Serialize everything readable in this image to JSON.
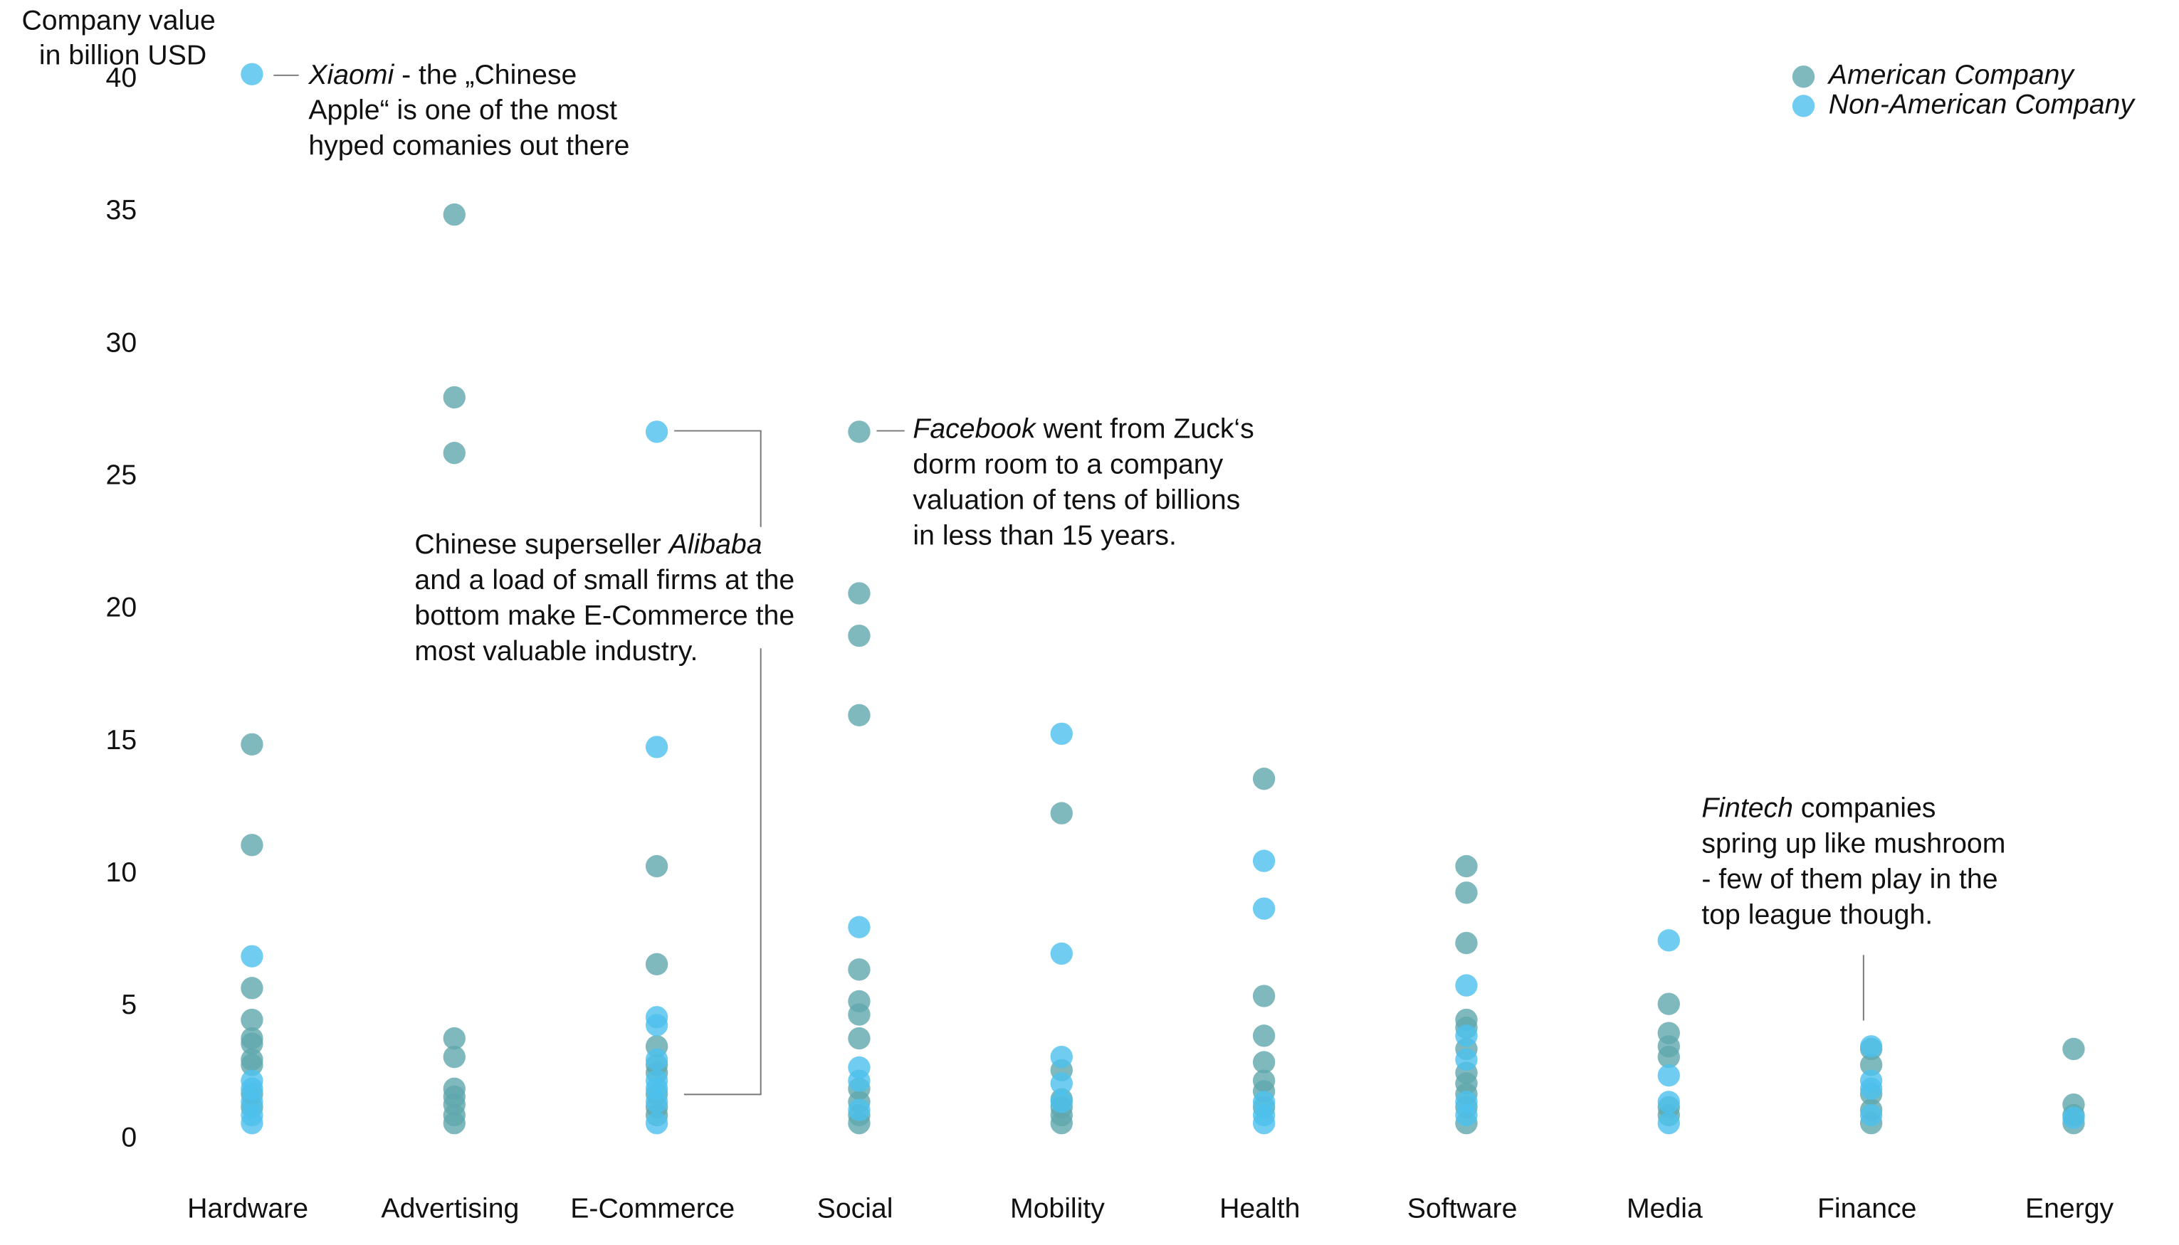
{
  "chart_data": {
    "type": "strip",
    "y_label": [
      "Company value",
      "in billion USD"
    ],
    "categories": [
      "Hardware",
      "Advertising",
      "E-Commerce",
      "Social",
      "Mobility",
      "Health",
      "Software",
      "Media",
      "Finance",
      "Energy"
    ],
    "series": [
      {
        "name": "American Company",
        "color": "#5fa8ac",
        "values": [
          [
            14.9,
            11.1,
            5.7,
            4.5,
            3.8,
            3.6,
            3.0,
            2.8,
            1.7,
            1.2
          ],
          [
            34.9,
            28.0,
            25.9,
            3.8,
            3.1,
            1.9,
            1.6,
            1.3,
            0.9,
            0.6
          ],
          [
            10.3,
            6.6,
            3.5,
            2.8,
            2.5,
            1.7,
            1.2,
            0.9
          ],
          [
            26.7,
            20.6,
            19.0,
            16.0,
            6.4,
            5.2,
            4.7,
            3.8,
            1.9,
            1.4,
            0.9,
            0.6
          ],
          [
            12.3,
            2.6,
            1.5,
            1.2,
            0.9,
            0.6
          ],
          [
            13.6,
            5.4,
            3.9,
            2.9,
            2.2,
            1.8,
            1.2
          ],
          [
            10.3,
            9.3,
            7.4,
            4.5,
            4.2,
            3.4,
            2.5,
            2.1,
            1.7,
            1.2,
            0.6
          ],
          [
            5.1,
            4.0,
            3.5,
            3.1,
            1.2,
            0.9
          ],
          [
            3.4,
            2.8,
            1.7,
            1.1,
            0.6
          ],
          [
            3.4,
            1.3,
            0.9,
            0.6
          ]
        ]
      },
      {
        "name": "Non-American Company",
        "color": "#4cc0ee",
        "values": [
          [
            40.2,
            6.9,
            2.2,
            1.9,
            1.4,
            0.9,
            0.6
          ],
          [],
          [
            26.7,
            14.8,
            4.6,
            4.3,
            3.0,
            2.2,
            1.9,
            1.4,
            0.6
          ],
          [
            8.0,
            2.7,
            2.2,
            1.1
          ],
          [
            15.3,
            7.0,
            3.1,
            2.1,
            1.4
          ],
          [
            10.5,
            8.7,
            1.4,
            0.9,
            0.6
          ],
          [
            5.8,
            3.9,
            3.0,
            1.4,
            0.9
          ],
          [
            7.5,
            2.4,
            1.4,
            0.6
          ],
          [
            3.5,
            2.2,
            1.9,
            0.9
          ],
          [
            0.8
          ]
        ]
      }
    ],
    "ylim": [
      0,
      42
    ],
    "yticks": [
      0,
      5,
      10,
      15,
      20,
      25,
      30,
      35,
      40
    ],
    "legend": "top-right",
    "annotations": [
      {
        "lines": [
          [
            {
              "text": "Xiaomi",
              "italic": true
            },
            " - the „Chinese"
          ],
          [
            "Apple“ is one of the most"
          ],
          [
            "hyped comanies out there"
          ]
        ]
      },
      {
        "lines": [
          [
            "Chinese superseller ",
            {
              "text": "Alibaba",
              "italic": true
            }
          ],
          [
            "and a load of small firms at the"
          ],
          [
            "bottom make E-Commerce the"
          ],
          [
            "most valuable industry."
          ]
        ]
      },
      {
        "lines": [
          [
            {
              "text": "Facebook",
              "italic": true
            },
            " went from Zuck‘s"
          ],
          [
            "dorm room to a company"
          ],
          [
            "valuation of tens of billions"
          ],
          [
            "in less than 15 years."
          ]
        ]
      },
      {
        "lines": [
          [
            {
              "text": "Fintech",
              "italic": true
            },
            " companies"
          ],
          [
            "spring up like mushroom"
          ],
          [
            "- few of them play in the"
          ],
          [
            "top league though."
          ]
        ]
      }
    ]
  }
}
